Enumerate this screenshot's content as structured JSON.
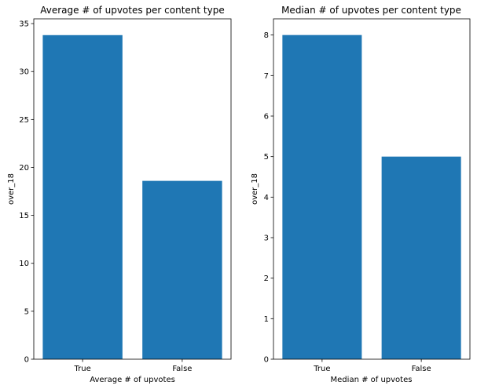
{
  "chart_data": [
    {
      "type": "bar",
      "title": "Average # of upvotes per content type",
      "xlabel": "Average # of upvotes",
      "ylabel": "over_18",
      "categories": [
        "True",
        "False"
      ],
      "values": [
        33.8,
        18.6
      ],
      "ylim": [
        0,
        35.5
      ],
      "yticks": [
        0,
        5,
        10,
        15,
        20,
        25,
        30,
        35
      ],
      "grid": false,
      "bar_color": "#1f77b4"
    },
    {
      "type": "bar",
      "title": "Median # of upvotes per content type",
      "xlabel": "Median # of upvotes",
      "ylabel": "over_18",
      "categories": [
        "True",
        "False"
      ],
      "values": [
        8,
        5
      ],
      "ylim": [
        0,
        8.4
      ],
      "yticks": [
        0,
        1,
        2,
        3,
        4,
        5,
        6,
        7,
        8
      ],
      "grid": false,
      "bar_color": "#1f77b4"
    }
  ]
}
